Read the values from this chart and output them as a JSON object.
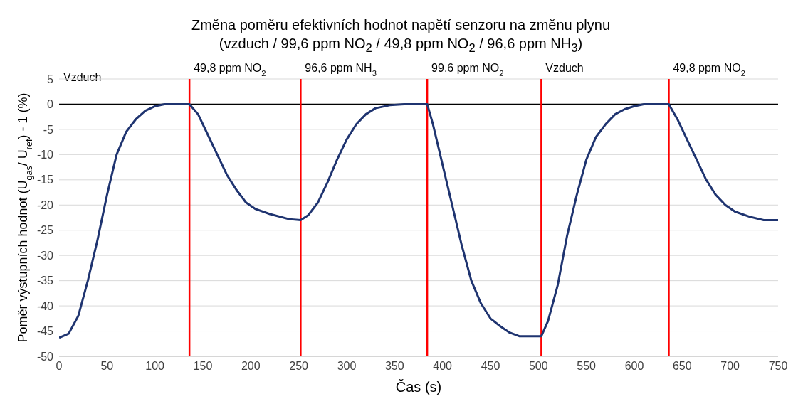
{
  "chart_data": {
    "type": "line",
    "title": "Změna poměru efektivních hodnot napětí senzoru na změnu plynu",
    "subtitle": "(vzduch / 99,6 ppm NO$_{2}$ / 49,8 ppm NO$_{2}$ / 96,6 ppm NH$_{3}$)",
    "xlabel": "Čas (s)",
    "ylabel": "Poměr výstupních hodnot (U$_{gas}$/ U$_{ref}$) - 1 (%)",
    "annotations": [
      "Vzduch"
    ],
    "series": [
      {
        "color": "#1f3470",
        "x": [
          0,
          10,
          20,
          30,
          40,
          50,
          60,
          70,
          80,
          90,
          100,
          110,
          136,
          145,
          155,
          165,
          175,
          185,
          195,
          205,
          220,
          240,
          252,
          260,
          270,
          280,
          290,
          300,
          310,
          320,
          330,
          345,
          360,
          384,
          390,
          400,
          410,
          420,
          430,
          440,
          450,
          460,
          470,
          480,
          503,
          510,
          520,
          530,
          540,
          550,
          560,
          570,
          580,
          590,
          600,
          610,
          636,
          645,
          655,
          665,
          675,
          685,
          695,
          705,
          720,
          735,
          750
        ],
        "values": [
          -46.3,
          -45.5,
          -42,
          -35,
          -27,
          -18,
          -10,
          -5.5,
          -3,
          -1.3,
          -0.4,
          0,
          0,
          -2,
          -6,
          -10,
          -14,
          -17,
          -19.5,
          -20.8,
          -21.8,
          -22.8,
          -23,
          -22,
          -19.5,
          -15.5,
          -11,
          -7,
          -4,
          -2,
          -0.8,
          -0.2,
          0,
          0,
          -4,
          -12,
          -20,
          -28,
          -35,
          -39.5,
          -42.5,
          -44,
          -45.3,
          -46,
          -46,
          -43,
          -36,
          -26,
          -18,
          -11,
          -6.5,
          -4,
          -2,
          -1,
          -0.4,
          0,
          0,
          -3,
          -7,
          -11,
          -15,
          -18,
          -20,
          -21.3,
          -22.3,
          -23,
          -23
        ]
      }
    ],
    "xlim": [
      0,
      750
    ],
    "xticks": [
      0,
      50,
      100,
      150,
      200,
      250,
      300,
      350,
      400,
      450,
      500,
      550,
      600,
      650,
      700,
      750
    ],
    "ylim": [
      -50,
      5
    ],
    "yticks": [
      -50,
      -45,
      -40,
      -35,
      -30,
      -25,
      -20,
      -15,
      -10,
      -5,
      0,
      5
    ],
    "grid": "y",
    "marker": "none",
    "line_style": "solid",
    "legend": false,
    "ref_lines": [
      {
        "axis": "y",
        "value": 0,
        "color": "#000000"
      },
      {
        "axis": "x",
        "value": 136,
        "label": "49,8 ppm NO$_{2}$",
        "color": "#ff0000"
      },
      {
        "axis": "x",
        "value": 252,
        "label": "96,6 ppm NH$_{3}$",
        "color": "#ff0000"
      },
      {
        "axis": "x",
        "value": 384,
        "label": "99,6 ppm NO$_{2}$",
        "color": "#ff0000"
      },
      {
        "axis": "x",
        "value": 503,
        "label": "Vzduch",
        "color": "#ff0000"
      },
      {
        "axis": "x",
        "value": 636,
        "label": "49,8 ppm NO$_{2}$",
        "color": "#ff0000"
      }
    ]
  }
}
